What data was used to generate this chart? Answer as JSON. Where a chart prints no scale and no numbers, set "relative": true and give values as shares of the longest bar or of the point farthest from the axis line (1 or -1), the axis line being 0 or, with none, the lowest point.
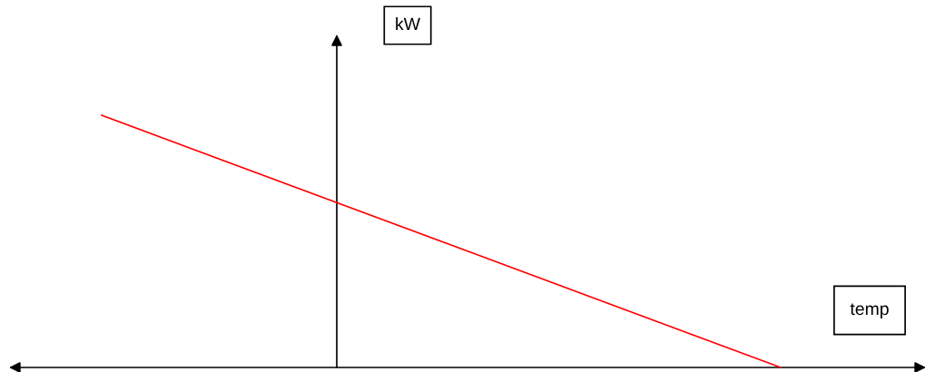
{
  "chart_data": {
    "type": "line",
    "relative": true,
    "xlabel": "temp",
    "ylabel": "kW",
    "categories": [
      null,
      null
    ],
    "series": [
      {
        "color": "#ff0000",
        "values": [
          1,
          0
        ]
      }
    ],
    "marker": "none",
    "line_style": "solid",
    "grid": false,
    "legend": false
  }
}
